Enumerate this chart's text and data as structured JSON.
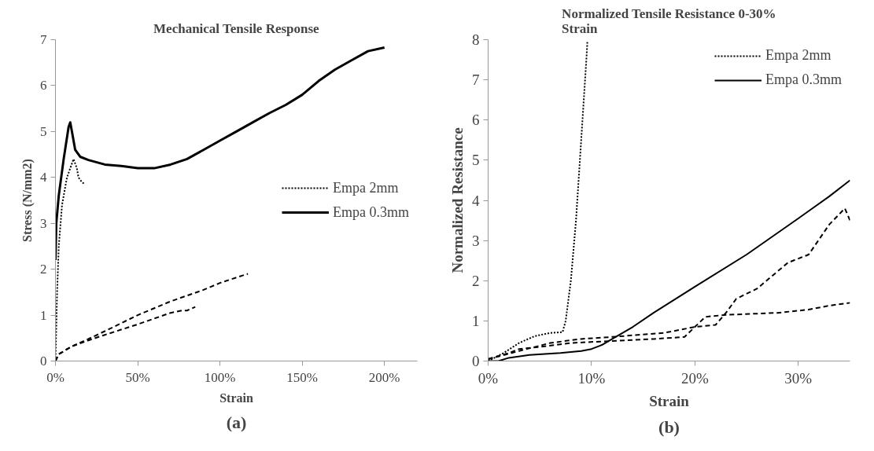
{
  "chart_data": [
    {
      "type": "line",
      "title": "Mechanical Tensile Response",
      "xlabel": "Strain",
      "ylabel": "Stress (N/mm2)",
      "annotations": [
        "(a)"
      ],
      "xlim": [
        0,
        220
      ],
      "xticks": [
        {
          "value": 0,
          "label": "0%"
        },
        {
          "value": 50,
          "label": "50%"
        },
        {
          "value": 100,
          "label": "100%"
        },
        {
          "value": 150,
          "label": "150%"
        },
        {
          "value": 200,
          "label": "200%"
        }
      ],
      "ylim": [
        0,
        7
      ],
      "yticks": [
        0,
        1,
        2,
        3,
        4,
        5,
        6,
        7
      ],
      "grid": false,
      "legend": "right",
      "series": [
        {
          "color": "#000000",
          "line_style": "dashed",
          "x": [
            0,
            2,
            10,
            20,
            30,
            50,
            70,
            90,
            100,
            110,
            117
          ],
          "values": [
            0,
            0.15,
            0.32,
            0.48,
            0.65,
            1.0,
            1.3,
            1.55,
            1.7,
            1.82,
            1.9
          ]
        },
        {
          "color": "#000000",
          "line_style": "dashed",
          "x": [
            0,
            2,
            10,
            20,
            30,
            50,
            70,
            77,
            80,
            85
          ],
          "values": [
            0,
            0.15,
            0.32,
            0.45,
            0.57,
            0.8,
            1.05,
            1.1,
            1.1,
            1.18
          ]
        },
        {
          "name": "Empa 2mm",
          "color": "#000000",
          "line_style": "dotted",
          "x": [
            0,
            1,
            2,
            4,
            7,
            10,
            11,
            13,
            14,
            16,
            18
          ],
          "values": [
            0,
            1.5,
            2.5,
            3.4,
            4.0,
            4.3,
            4.4,
            4.2,
            4.0,
            3.9,
            3.85
          ]
        },
        {
          "name": "Empa 0.3mm",
          "color": "#000000",
          "line_style": "solid",
          "x": [
            0,
            0.5,
            2,
            5,
            8,
            9,
            10,
            12,
            15,
            20,
            30,
            40,
            50,
            60,
            70,
            80,
            90,
            100,
            110,
            120,
            130,
            140,
            150,
            160,
            170,
            180,
            190,
            200
          ],
          "values": [
            2.2,
            3.0,
            3.6,
            4.4,
            5.1,
            5.2,
            5.0,
            4.6,
            4.45,
            4.38,
            4.28,
            4.25,
            4.2,
            4.2,
            4.28,
            4.4,
            4.6,
            4.8,
            5.0,
            5.2,
            5.4,
            5.58,
            5.8,
            6.1,
            6.35,
            6.55,
            6.75,
            6.83
          ]
        }
      ]
    },
    {
      "type": "line",
      "title": "Normalized Tensile Resistance 0-30% Strain",
      "xlabel": "Strain",
      "ylabel": "Normalized Resistance",
      "annotations": [
        "(b)"
      ],
      "xlim": [
        0,
        35
      ],
      "xticks": [
        {
          "value": 0,
          "label": "0%"
        },
        {
          "value": 10,
          "label": "10%"
        },
        {
          "value": 20,
          "label": "20%"
        },
        {
          "value": 30,
          "label": "30%"
        }
      ],
      "ylim": [
        0,
        8
      ],
      "yticks": [
        0,
        1,
        2,
        3,
        4,
        5,
        6,
        7,
        8
      ],
      "grid": false,
      "legend": "top right",
      "series": [
        {
          "color": "#000000",
          "line_style": "dashed",
          "x": [
            0,
            2,
            3,
            5,
            8,
            12,
            16,
            19,
            20,
            21,
            23,
            28,
            31,
            33,
            35
          ],
          "values": [
            0.05,
            0.2,
            0.3,
            0.35,
            0.45,
            0.5,
            0.55,
            0.6,
            0.85,
            1.1,
            1.15,
            1.2,
            1.28,
            1.38,
            1.45
          ]
        },
        {
          "color": "#000000",
          "line_style": "dashed",
          "x": [
            0,
            3,
            6,
            9,
            12,
            17,
            20,
            22,
            23,
            24,
            26,
            29,
            31,
            33,
            34.5,
            35
          ],
          "values": [
            0.05,
            0.25,
            0.45,
            0.55,
            0.6,
            0.7,
            0.85,
            0.9,
            1.2,
            1.55,
            1.8,
            2.45,
            2.65,
            3.4,
            3.8,
            3.5
          ]
        },
        {
          "name": "Empa 2mm",
          "color": "#000000",
          "line_style": "dotted",
          "x": [
            0,
            1.5,
            3,
            4.5,
            6,
            7.2,
            7.5,
            8,
            8.5,
            9,
            9.5,
            9.6
          ],
          "values": [
            0,
            0.2,
            0.45,
            0.62,
            0.7,
            0.72,
            1.0,
            2.0,
            3.5,
            5.5,
            7.5,
            7.95
          ]
        },
        {
          "name": "Empa 0.3mm",
          "color": "#000000",
          "line_style": "solid",
          "x": [
            0,
            1,
            2,
            4,
            7,
            9,
            10,
            11,
            12,
            14,
            16,
            20,
            25,
            30,
            33,
            35
          ],
          "values": [
            0,
            0,
            0.08,
            0.15,
            0.2,
            0.25,
            0.3,
            0.4,
            0.55,
            0.85,
            1.2,
            1.85,
            2.65,
            3.55,
            4.1,
            4.5
          ]
        }
      ]
    }
  ]
}
